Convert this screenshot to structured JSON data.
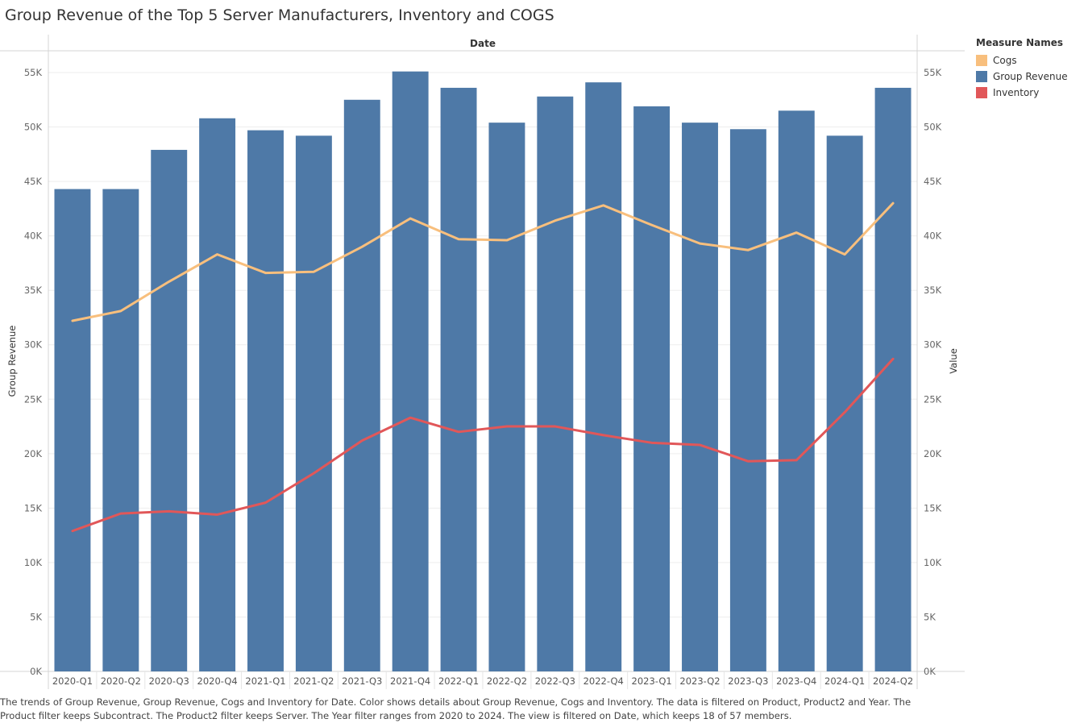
{
  "title": "Group Revenue of the Top 5 Server Manufacturers, Inventory and COGS",
  "caption": "The trends of Group Revenue, Group Revenue, Cogs and Inventory for Date.  Color shows details about Group Revenue, Cogs and Inventory. The data is filtered on Product, Product2 and Year. The Product filter keeps Subcontract. The Product2 filter keeps Server. The Year filter ranges from 2020 to 2024. The view is filtered on Date, which keeps 18 of 57 members.",
  "legend": {
    "title": "Measure Names",
    "items": [
      {
        "label": "Cogs",
        "color": "#f8bf7d"
      },
      {
        "label": "Group Revenue",
        "color": "#4e79a7"
      },
      {
        "label": "Inventory",
        "color": "#e15759"
      }
    ]
  },
  "chart_data": {
    "type": "bar",
    "header": "Date",
    "ylabel_left": "Group Revenue",
    "ylabel_right": "Value",
    "ylim": [
      0,
      57000
    ],
    "yticks": [
      {
        "value": 0,
        "label": "0K"
      },
      {
        "value": 5000,
        "label": "5K"
      },
      {
        "value": 10000,
        "label": "10K"
      },
      {
        "value": 15000,
        "label": "15K"
      },
      {
        "value": 20000,
        "label": "20K"
      },
      {
        "value": 25000,
        "label": "25K"
      },
      {
        "value": 30000,
        "label": "30K"
      },
      {
        "value": 35000,
        "label": "35K"
      },
      {
        "value": 40000,
        "label": "40K"
      },
      {
        "value": 45000,
        "label": "45K"
      },
      {
        "value": 50000,
        "label": "50K"
      },
      {
        "value": 55000,
        "label": "55K"
      }
    ],
    "categories": [
      "2020-Q1",
      "2020-Q2",
      "2020-Q3",
      "2020-Q4",
      "2021-Q1",
      "2021-Q2",
      "2021-Q3",
      "2021-Q4",
      "2022-Q1",
      "2022-Q2",
      "2022-Q3",
      "2022-Q4",
      "2023-Q1",
      "2023-Q2",
      "2023-Q3",
      "2023-Q4",
      "2024-Q1",
      "2024-Q2"
    ],
    "series": [
      {
        "name": "Group Revenue",
        "type": "bar",
        "color": "#4e79a7",
        "values": [
          44300,
          44300,
          47900,
          50800,
          49700,
          49200,
          52500,
          55100,
          53600,
          50400,
          52800,
          54100,
          51900,
          50400,
          49800,
          51500,
          49200,
          53600
        ]
      },
      {
        "name": "Cogs",
        "type": "line",
        "color": "#f8bf7d",
        "values": [
          32200,
          33100,
          35800,
          38300,
          36600,
          36700,
          39000,
          41600,
          39700,
          39600,
          41400,
          42800,
          41000,
          39300,
          38700,
          40300,
          38300,
          43000
        ]
      },
      {
        "name": "Inventory",
        "type": "line",
        "color": "#e15759",
        "values": [
          12900,
          14500,
          14700,
          14400,
          15500,
          18200,
          21200,
          23300,
          22000,
          22500,
          22500,
          21700,
          21000,
          20800,
          19300,
          19400,
          23800,
          28700
        ]
      }
    ]
  }
}
